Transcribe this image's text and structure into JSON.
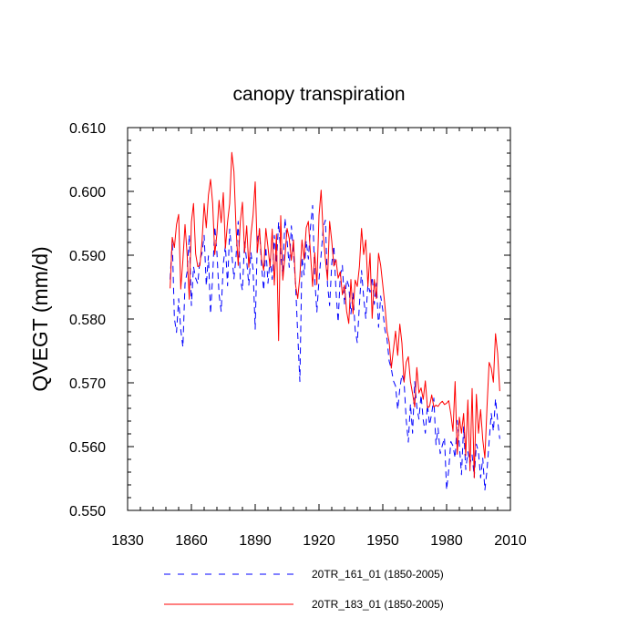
{
  "chart_data": {
    "type": "line",
    "title": "canopy transpiration",
    "xlabel": "",
    "ylabel": "QVEGT  (mm/d)",
    "xlim": [
      1830,
      2010
    ],
    "ylim": [
      0.55,
      0.61
    ],
    "x_ticks": [
      1830,
      1860,
      1890,
      1920,
      1950,
      1980,
      2010
    ],
    "x_tick_labels": [
      "1830",
      "1860",
      "1890",
      "1920",
      "1950",
      "1980",
      "2010"
    ],
    "y_ticks": [
      0.55,
      0.56,
      0.57,
      0.58,
      0.59,
      0.6,
      0.61
    ],
    "y_tick_labels": [
      "0.550",
      "0.560",
      "0.570",
      "0.580",
      "0.590",
      "0.600",
      "0.610"
    ],
    "legend_position": "bottom",
    "x": [
      1850,
      1851,
      1852,
      1853,
      1854,
      1855,
      1856,
      1857,
      1858,
      1859,
      1860,
      1861,
      1862,
      1863,
      1864,
      1865,
      1866,
      1867,
      1868,
      1869,
      1870,
      1871,
      1872,
      1873,
      1874,
      1875,
      1876,
      1877,
      1878,
      1879,
      1880,
      1881,
      1882,
      1883,
      1884,
      1885,
      1886,
      1887,
      1888,
      1889,
      1890,
      1891,
      1892,
      1893,
      1894,
      1895,
      1896,
      1897,
      1898,
      1899,
      1900,
      1901,
      1902,
      1903,
      1904,
      1905,
      1906,
      1907,
      1908,
      1909,
      1910,
      1911,
      1912,
      1913,
      1914,
      1915,
      1916,
      1917,
      1918,
      1919,
      1920,
      1921,
      1922,
      1923,
      1924,
      1925,
      1926,
      1927,
      1928,
      1929,
      1930,
      1931,
      1932,
      1933,
      1934,
      1935,
      1936,
      1937,
      1938,
      1939,
      1940,
      1941,
      1942,
      1943,
      1944,
      1945,
      1946,
      1947,
      1948,
      1949,
      1950,
      1951,
      1952,
      1953,
      1954,
      1955,
      1956,
      1957,
      1958,
      1959,
      1960,
      1961,
      1962,
      1963,
      1964,
      1965,
      1966,
      1967,
      1968,
      1969,
      1970,
      1971,
      1972,
      1973,
      1974,
      1975,
      1976,
      1977,
      1978,
      1979,
      1980,
      1981,
      1982,
      1983,
      1984,
      1985,
      1986,
      1987,
      1988,
      1989,
      1990,
      1991,
      1992,
      1993,
      1994,
      1995,
      1996,
      1997,
      1998,
      1999,
      2000,
      2001,
      2002,
      2003,
      2004,
      2005
    ],
    "series": [
      {
        "name": "20TR_161_01 (1850-2005)",
        "color": "#0000ff",
        "style": "dashed",
        "values": [
          0.5862,
          0.5924,
          0.5801,
          0.5779,
          0.5832,
          0.5783,
          0.5756,
          0.5855,
          0.5874,
          0.5932,
          0.5821,
          0.5882,
          0.5864,
          0.5855,
          0.5893,
          0.5903,
          0.5931,
          0.5852,
          0.5899,
          0.5808,
          0.5867,
          0.5945,
          0.5904,
          0.5839,
          0.5812,
          0.5886,
          0.5915,
          0.5852,
          0.5941,
          0.5903,
          0.5863,
          0.5898,
          0.5953,
          0.5862,
          0.5845,
          0.5921,
          0.5891,
          0.5853,
          0.5904,
          0.5878,
          0.5784,
          0.5924,
          0.5941,
          0.5882,
          0.5845,
          0.5913,
          0.5856,
          0.5894,
          0.5862,
          0.5931,
          0.5887,
          0.5952,
          0.5903,
          0.5867,
          0.5958,
          0.5923,
          0.5881,
          0.5946,
          0.5904,
          0.5853,
          0.5776,
          0.5702,
          0.5897,
          0.5869,
          0.5923,
          0.5894,
          0.5944,
          0.5978,
          0.5863,
          0.5811,
          0.5862,
          0.5901,
          0.5943,
          0.5955,
          0.5854,
          0.5821,
          0.5887,
          0.5915,
          0.5843,
          0.5795,
          0.5868,
          0.5884,
          0.5823,
          0.5862,
          0.5852,
          0.5808,
          0.5841,
          0.5783,
          0.5763,
          0.5822,
          0.5876,
          0.5834,
          0.5801,
          0.5854,
          0.5842,
          0.5866,
          0.5823,
          0.5856,
          0.5787,
          0.5836,
          0.5814,
          0.5783,
          0.5768,
          0.5734,
          0.5722,
          0.5703,
          0.5695,
          0.5658,
          0.5691,
          0.5713,
          0.5702,
          0.5642,
          0.5607,
          0.5667,
          0.5621,
          0.5702,
          0.5662,
          0.5643,
          0.5681,
          0.5642,
          0.5621,
          0.5666,
          0.5634,
          0.5652,
          0.5676,
          0.5603,
          0.5629,
          0.5589,
          0.5602,
          0.5614,
          0.5532,
          0.5564,
          0.5608,
          0.5601,
          0.5582,
          0.5641,
          0.5603,
          0.5556,
          0.5631,
          0.5564,
          0.5592,
          0.5573,
          0.5587,
          0.5552,
          0.5604,
          0.5591,
          0.5551,
          0.5582,
          0.5532,
          0.5563,
          0.5608,
          0.5652,
          0.5624,
          0.5675,
          0.5641,
          0.5612
        ]
      },
      {
        "name": "20TR_183_01 (1850-2005)",
        "color": "#ff0000",
        "style": "solid",
        "values": [
          0.5848,
          0.5928,
          0.5912,
          0.5948,
          0.5964,
          0.5847,
          0.5892,
          0.5948,
          0.5901,
          0.5831,
          0.5952,
          0.5981,
          0.5902,
          0.5882,
          0.5884,
          0.5922,
          0.5981,
          0.5943,
          0.5994,
          0.6019,
          0.5981,
          0.5901,
          0.5934,
          0.5986,
          0.5951,
          0.5998,
          0.5911,
          0.5952,
          0.5981,
          0.6061,
          0.6031,
          0.5942,
          0.5884,
          0.5953,
          0.5983,
          0.5904,
          0.5946,
          0.5881,
          0.5932,
          0.5963,
          0.6015,
          0.5904,
          0.5942,
          0.5893,
          0.5876,
          0.5942,
          0.5913,
          0.5881,
          0.5941,
          0.5853,
          0.5933,
          0.5766,
          0.5962,
          0.5861,
          0.5899,
          0.5942,
          0.5926,
          0.5892,
          0.5924,
          0.5853,
          0.5832,
          0.5867,
          0.5924,
          0.5893,
          0.5943,
          0.5953,
          0.5902,
          0.5851,
          0.5904,
          0.5854,
          0.5962,
          0.6002,
          0.5932,
          0.5894,
          0.5861,
          0.5953,
          0.5922,
          0.5883,
          0.5893,
          0.5864,
          0.5874,
          0.5838,
          0.5853,
          0.5812,
          0.5793,
          0.5862,
          0.5808,
          0.5861,
          0.5851,
          0.5882,
          0.5942,
          0.5901,
          0.5924,
          0.5851,
          0.5903,
          0.5801,
          0.5862,
          0.5832,
          0.5903,
          0.5884,
          0.5853,
          0.5821,
          0.5781,
          0.5764,
          0.5723,
          0.5752,
          0.5781,
          0.5743,
          0.5792,
          0.5762,
          0.5701,
          0.5732,
          0.5741,
          0.5702,
          0.5683,
          0.5662,
          0.5724,
          0.5684,
          0.5692,
          0.5674,
          0.5703,
          0.5661,
          0.5663,
          0.5681,
          0.5662,
          0.5665,
          0.5663,
          0.5668,
          0.5671,
          0.5666,
          0.5668,
          0.5672,
          0.5651,
          0.5624,
          0.5702,
          0.5588,
          0.5646,
          0.5621,
          0.5652,
          0.5586,
          0.5673,
          0.5562,
          0.5691,
          0.5551,
          0.5682,
          0.5621,
          0.5658,
          0.5611,
          0.5582,
          0.5662,
          0.5732,
          0.5723,
          0.5701,
          0.5777,
          0.5746,
          0.5687
        ]
      }
    ]
  }
}
